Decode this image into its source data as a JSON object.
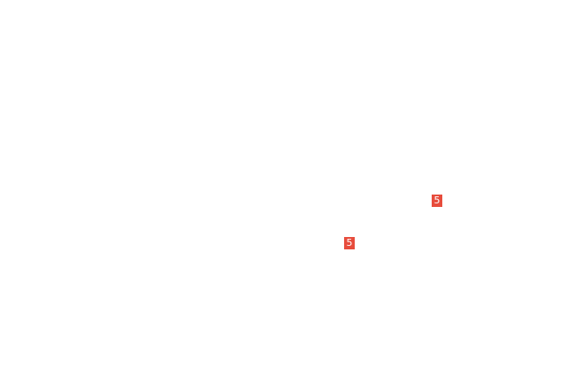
{
  "page": {
    "background_color": "#ffffff"
  },
  "colors": {
    "marker_background": "#e74c3c",
    "marker_text": "#ffffff"
  },
  "markers": [
    {
      "label": "5"
    },
    {
      "label": "5"
    }
  ]
}
